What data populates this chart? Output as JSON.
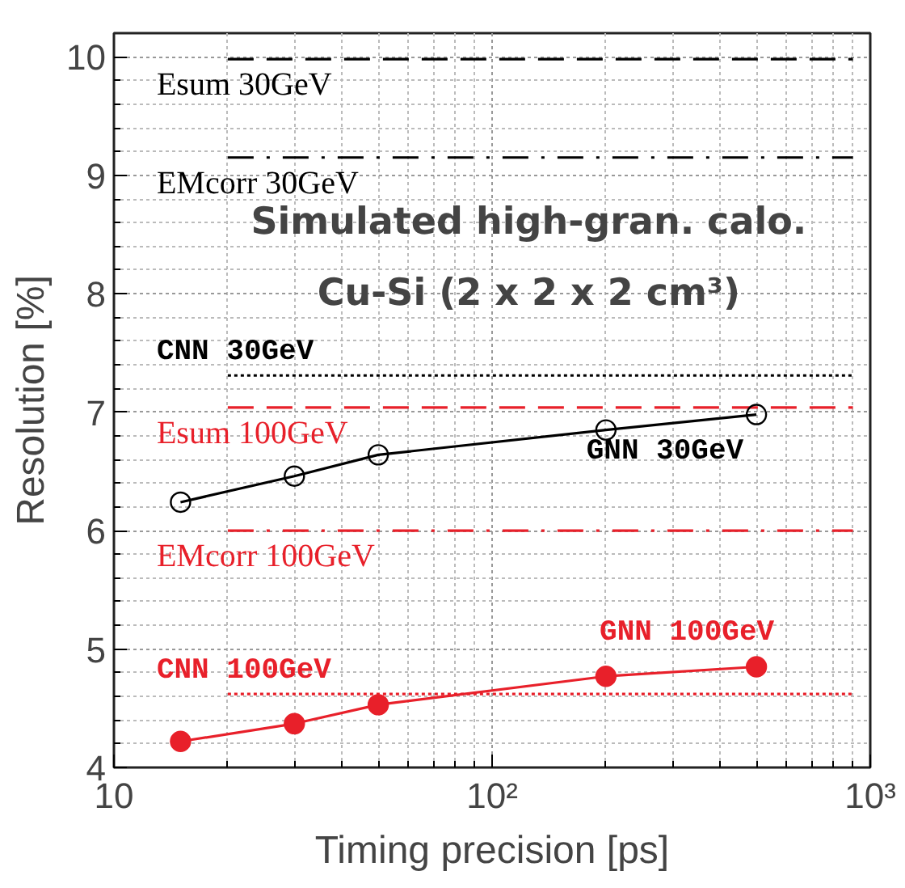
{
  "chart_data": {
    "type": "line",
    "title": "Simulated high-gran. calo.",
    "subtitle": "Cu-Si (2 x 2 x 2 cm³)",
    "xlabel": "Timing precision [ps]",
    "ylabel": "Resolution [%]",
    "log": "x",
    "xlim": [
      10,
      1000
    ],
    "ylim": [
      4,
      10.2
    ],
    "xticks": [
      10,
      {
        "value": 100,
        "label": "10²"
      },
      {
        "value": 1000,
        "label": "10³"
      }
    ],
    "yticks": [
      4,
      5,
      6,
      7,
      8,
      9,
      10
    ],
    "grid": true,
    "annotations": [
      {
        "text": "Esum 30GeV",
        "y": 9.98
      },
      {
        "text": "EMcorr 30GeV",
        "y": 9.15
      },
      {
        "text": "CNN  30GeV",
        "y": 7.31
      },
      {
        "text": "Esum 100GeV",
        "y": 7.04
      },
      {
        "text": "EMcorr 100GeV",
        "y": 6.0
      },
      {
        "text": "CNN 100GeV",
        "y": 4.62
      },
      {
        "text": "GNN 30GeV",
        "y": 6.98
      },
      {
        "text": "GNN 100GeV",
        "y": 4.85
      }
    ],
    "series": [
      {
        "color": "#000000",
        "x": [
          20,
          900
        ],
        "values": [
          9.98,
          9.98
        ],
        "line_style": "dashed",
        "marker": "none"
      },
      {
        "color": "#000000",
        "x": [
          20,
          900
        ],
        "values": [
          9.15,
          9.15
        ],
        "line_style": "dashdot",
        "marker": "none"
      },
      {
        "color": "#000000",
        "x": [
          20,
          900
        ],
        "values": [
          7.31,
          7.31
        ],
        "line_style": "dotted",
        "marker": "none"
      },
      {
        "color": "#e8202a",
        "x": [
          20,
          900
        ],
        "values": [
          7.04,
          7.04
        ],
        "line_style": "dashed",
        "marker": "none"
      },
      {
        "color": "#e8202a",
        "x": [
          20,
          900
        ],
        "values": [
          6.0,
          6.0
        ],
        "line_style": "dashdot",
        "marker": "none"
      },
      {
        "color": "#e8202a",
        "x": [
          20,
          900
        ],
        "values": [
          4.62,
          4.62
        ],
        "line_style": "dotted",
        "marker": "none"
      },
      {
        "color": "#000000",
        "x": [
          15,
          30,
          50,
          200,
          500
        ],
        "values": [
          6.24,
          6.46,
          6.64,
          6.85,
          6.98
        ],
        "line_style": "solid",
        "marker": "circle"
      },
      {
        "color": "#e8202a",
        "x": [
          15,
          30,
          50,
          200,
          500
        ],
        "values": [
          4.22,
          4.37,
          4.53,
          4.77,
          4.85
        ],
        "line_style": "solid",
        "marker": "circle"
      }
    ]
  }
}
